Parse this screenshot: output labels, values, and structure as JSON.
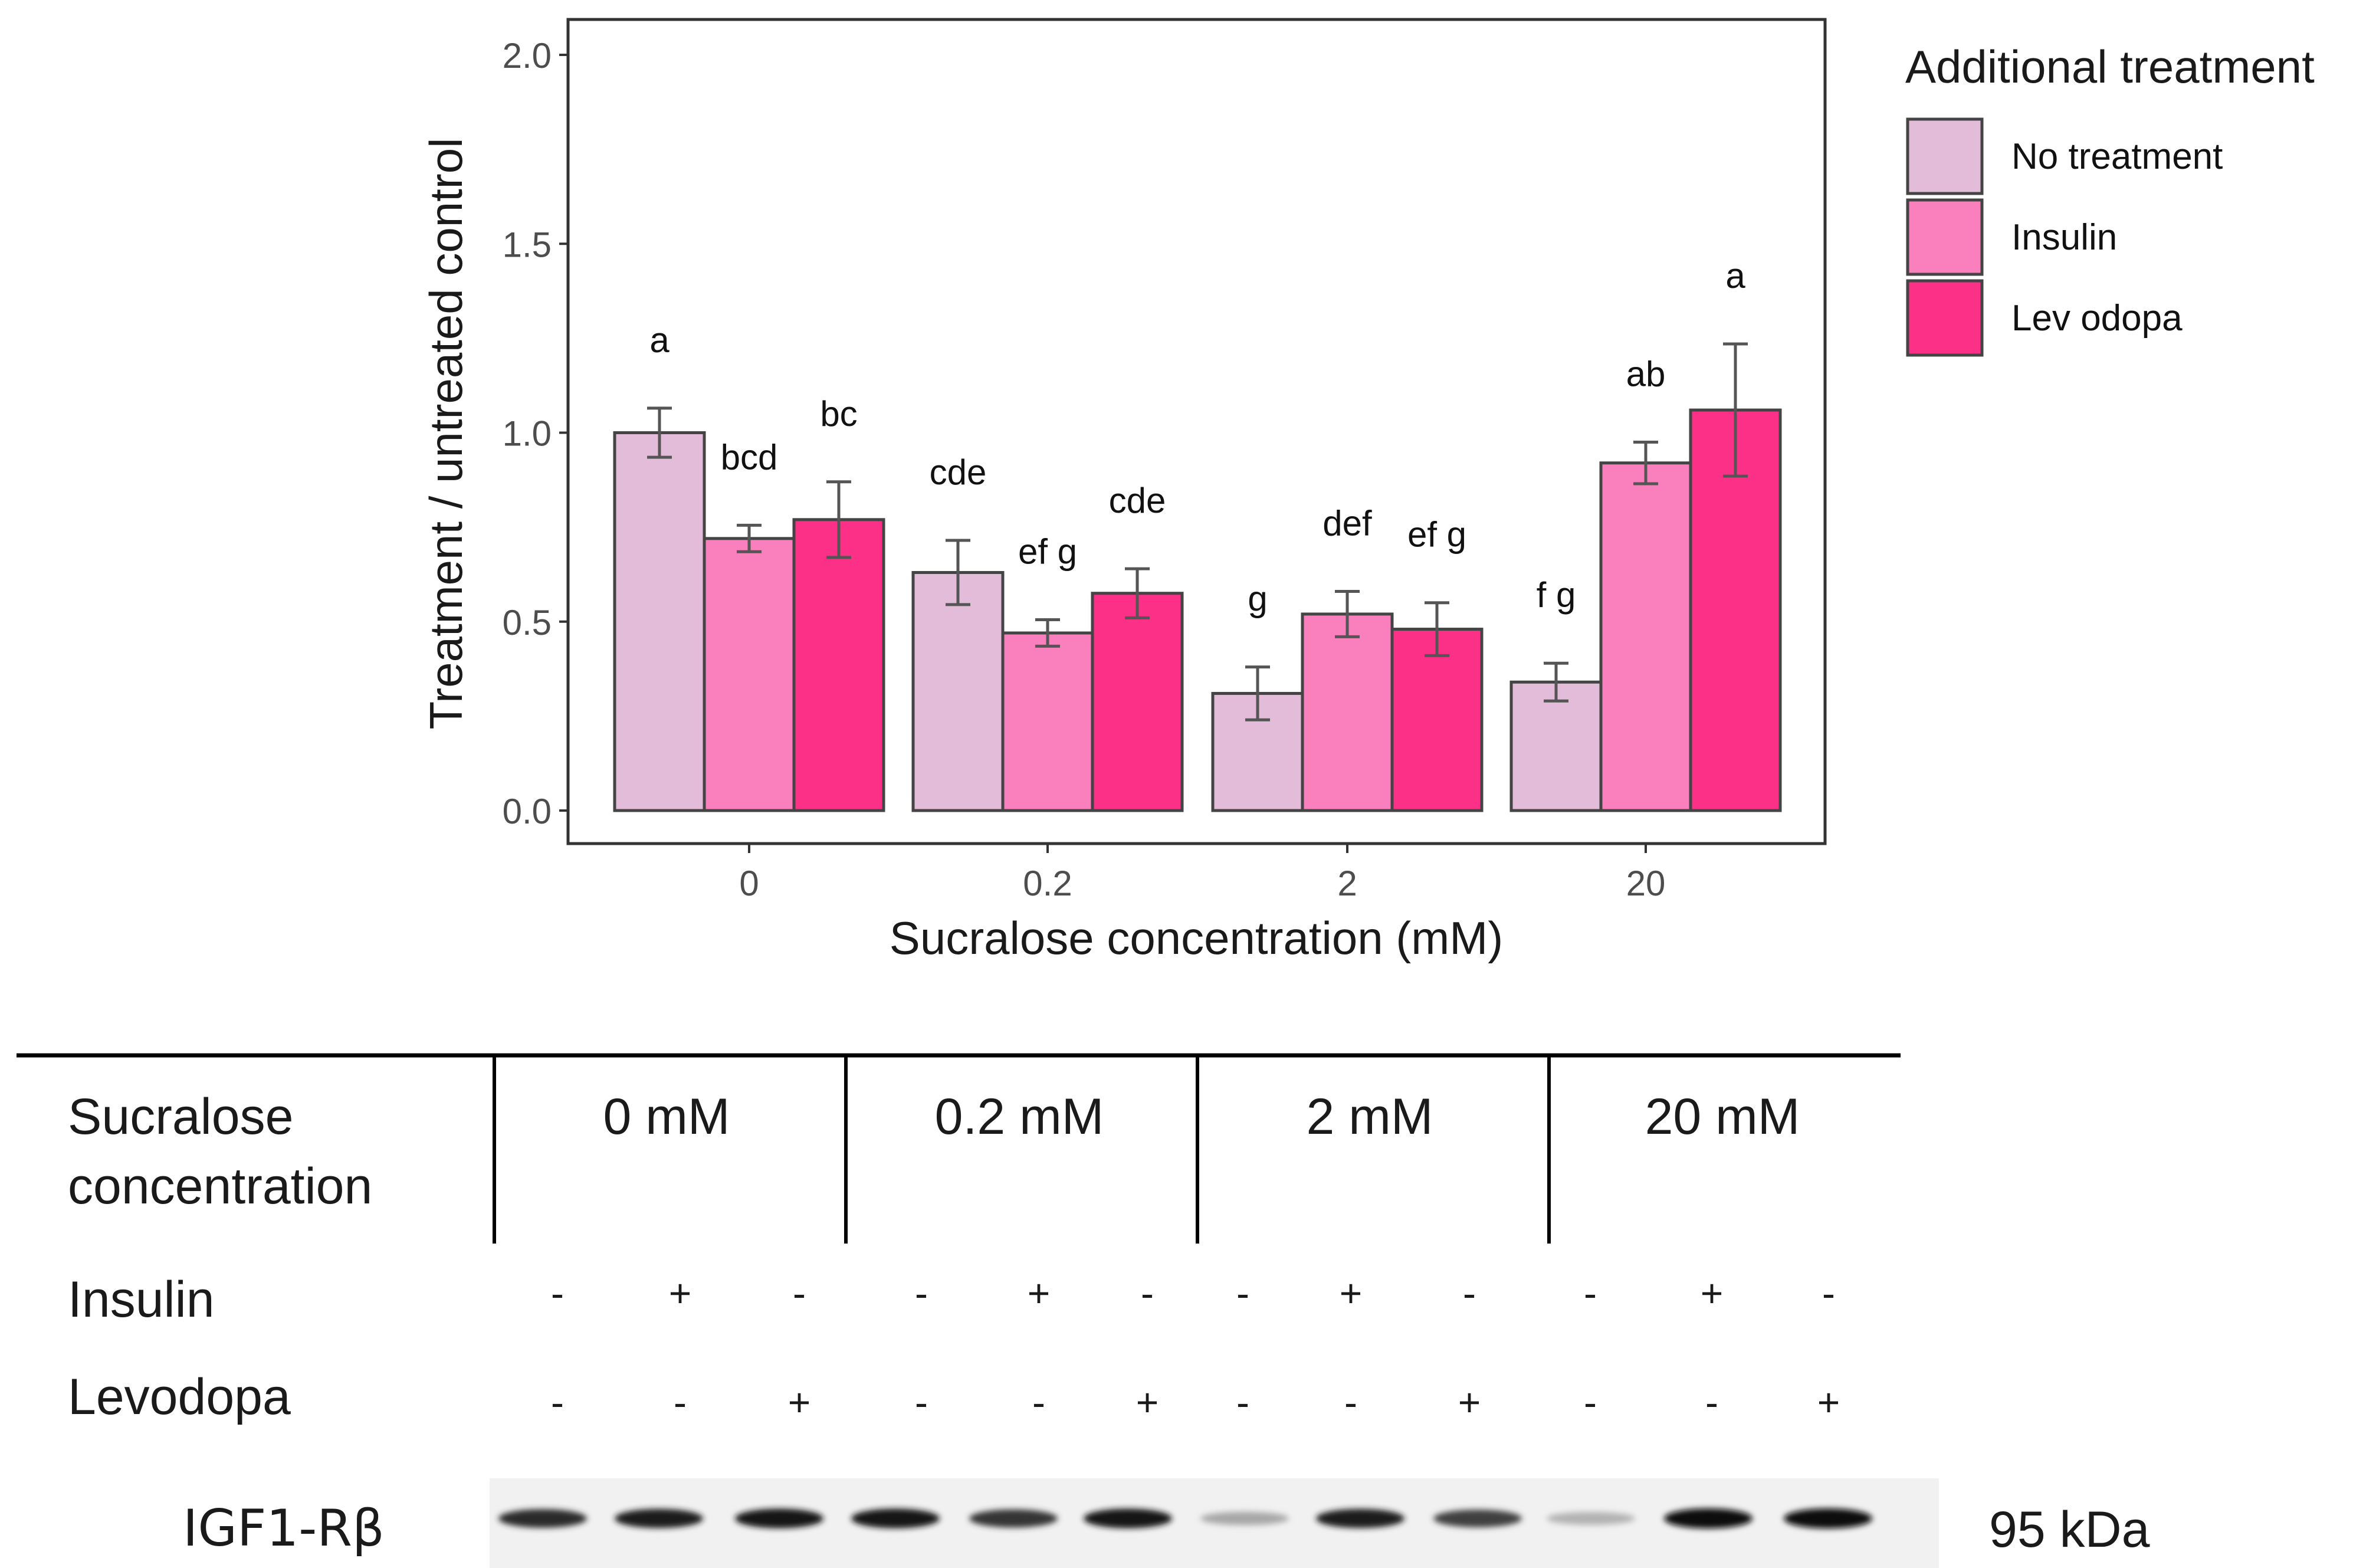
{
  "chart_data": {
    "type": "bar",
    "title": "",
    "xlabel": "Sucralose concentration (mM)",
    "ylabel": "Treatment / untreated control",
    "ylim": [
      0,
      2.05
    ],
    "yticks": [
      "0.0",
      "0.5",
      "1.0",
      "1.5",
      "2.0"
    ],
    "ytick_values": [
      0.0,
      0.5,
      1.0,
      1.5,
      2.0
    ],
    "categories": [
      "0",
      "0.2",
      "2",
      "20"
    ],
    "legend": {
      "title": "Additional treatment",
      "placement": "right",
      "entries": [
        "No treatment",
        "Insulin",
        "Lev odopa"
      ]
    },
    "series": [
      {
        "name": "No treatment",
        "color": "#e3bcd9",
        "values": [
          1.0,
          0.63,
          0.31,
          0.34
        ],
        "errors": [
          0.065,
          0.085,
          0.07,
          0.05
        ],
        "letters": [
          "a",
          "cde",
          "g",
          "f g"
        ]
      },
      {
        "name": "Insulin",
        "color": "#f97fbd",
        "values": [
          0.72,
          0.47,
          0.52,
          0.92
        ],
        "errors": [
          0.035,
          0.035,
          0.06,
          0.055
        ],
        "letters": [
          "bcd",
          "ef g",
          "def",
          "ab"
        ]
      },
      {
        "name": "Levodopa",
        "color": "#fc3087",
        "values": [
          0.77,
          0.575,
          0.48,
          1.06
        ],
        "errors": [
          0.1,
          0.065,
          0.07,
          0.175
        ],
        "letters": [
          "bc",
          "cde",
          "ef g",
          "a"
        ]
      }
    ],
    "grid": false,
    "border_color": "#333333",
    "bar_edge_color": "#444444"
  },
  "western_blot": {
    "row_label": "Sucralose concentration",
    "concentrations": [
      "0 mM",
      "0.2 mM",
      "2 mM",
      "20 mM"
    ],
    "insulin_label": "Insulin",
    "levodopa_label": "Levodopa",
    "insulin_signs": [
      "-",
      "+",
      "-",
      "-",
      "+",
      "-",
      "-",
      "+",
      "-",
      "-",
      "+",
      "-"
    ],
    "levodopa_signs": [
      "-",
      "-",
      "+",
      "-",
      "-",
      "+",
      "-",
      "-",
      "+",
      "-",
      "-",
      "+"
    ],
    "protein_label": "IGF1-Rβ",
    "size_label": "95 kDa",
    "band_intensity": [
      0.85,
      0.9,
      0.95,
      0.95,
      0.8,
      0.95,
      0.3,
      0.9,
      0.75,
      0.25,
      1.0,
      1.0
    ]
  }
}
